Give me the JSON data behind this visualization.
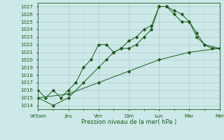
{
  "xlabel": "Pression niveau de la mer( hPa )",
  "background_color": "#cce8e8",
  "grid_major_color": "#b0c8c8",
  "grid_minor_color": "#c0d8d8",
  "line_color": "#1a5c1a",
  "xlim": [
    0,
    12
  ],
  "ylim": [
    1013.5,
    1027.5
  ],
  "yticks": [
    1014,
    1015,
    1016,
    1017,
    1018,
    1019,
    1020,
    1021,
    1022,
    1023,
    1024,
    1025,
    1026,
    1027
  ],
  "xtick_positions": [
    0,
    2,
    4,
    6,
    8,
    10,
    12
  ],
  "xtick_labels": [
    "Ve5am",
    "Jeu",
    "Ven",
    "Dim",
    "Lun",
    "Mar",
    "Mer"
  ],
  "line1_x": [
    0,
    0.5,
    1,
    1.5,
    2,
    2.5,
    3,
    3.5,
    4,
    4.5,
    5,
    5.5,
    6,
    6.5,
    7,
    7.5,
    8,
    8.5,
    9,
    9.5,
    10,
    10.5,
    11,
    11.5,
    12
  ],
  "line1_y": [
    1016,
    1015,
    1016,
    1015,
    1016,
    1017,
    1019,
    1020,
    1022,
    1022,
    1021,
    1021.5,
    1022.5,
    1023,
    1024,
    1024.5,
    1027,
    1027,
    1026.5,
    1026,
    1025,
    1023.5,
    1022,
    1021.5,
    1021.5
  ],
  "line2_x": [
    0,
    1,
    2,
    3,
    4,
    4.5,
    5,
    5.5,
    6,
    6.5,
    7,
    7.5,
    8,
    8.5,
    9,
    9.5,
    10,
    10.5,
    11,
    12
  ],
  "line2_y": [
    1015,
    1014,
    1015,
    1017,
    1019,
    1020,
    1021,
    1021.5,
    1021.5,
    1022,
    1023,
    1024,
    1027,
    1027,
    1026,
    1025,
    1025,
    1023,
    1022,
    1021.5
  ],
  "line3_x": [
    0,
    2,
    4,
    6,
    8,
    10,
    12
  ],
  "line3_y": [
    1015,
    1015.5,
    1017,
    1018.5,
    1020,
    1021,
    1021.5
  ]
}
